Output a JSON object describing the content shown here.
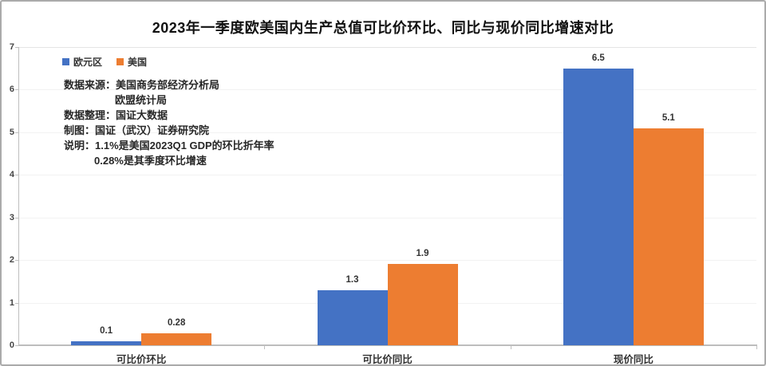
{
  "chart_data": {
    "type": "bar",
    "title": "2023年一季度欧美国内生产总值可比价环比、同比与现价同比增速对比",
    "categories": [
      "可比价环比",
      "可比价同比",
      "现价同比"
    ],
    "series": [
      {
        "name": "欧元区",
        "color": "#4472C4",
        "values": [
          0.1,
          1.3,
          6.5
        ]
      },
      {
        "name": "美国",
        "color": "#ED7D31",
        "values": [
          0.28,
          1.9,
          5.1
        ]
      }
    ],
    "xlabel": "",
    "ylabel": "",
    "ylim": [
      0,
      7
    ],
    "yticks": [
      0,
      1,
      2,
      3,
      4,
      5,
      6,
      7
    ],
    "grid": true,
    "legend_position": "top-left",
    "value_labels_shown": true,
    "annotation_lines": [
      {
        "text": "数据来源：美国商务部经济分析局",
        "indent": 0
      },
      {
        "text": "欧盟统计局",
        "indent": 64
      },
      {
        "text": "数据整理：国证大数据",
        "indent": 0
      },
      {
        "text": "制图：国证（武汉）证券研究院",
        "indent": 0
      },
      {
        "text": "说明：1.1%是美国2023Q1 GDP的环比折年率",
        "indent": 0
      },
      {
        "text": "0.28%是其季度环比增速",
        "indent": 38
      }
    ],
    "colors": {
      "axis": "#bfbfbf",
      "grid": "#f2f2f2",
      "text": "#333333"
    }
  }
}
